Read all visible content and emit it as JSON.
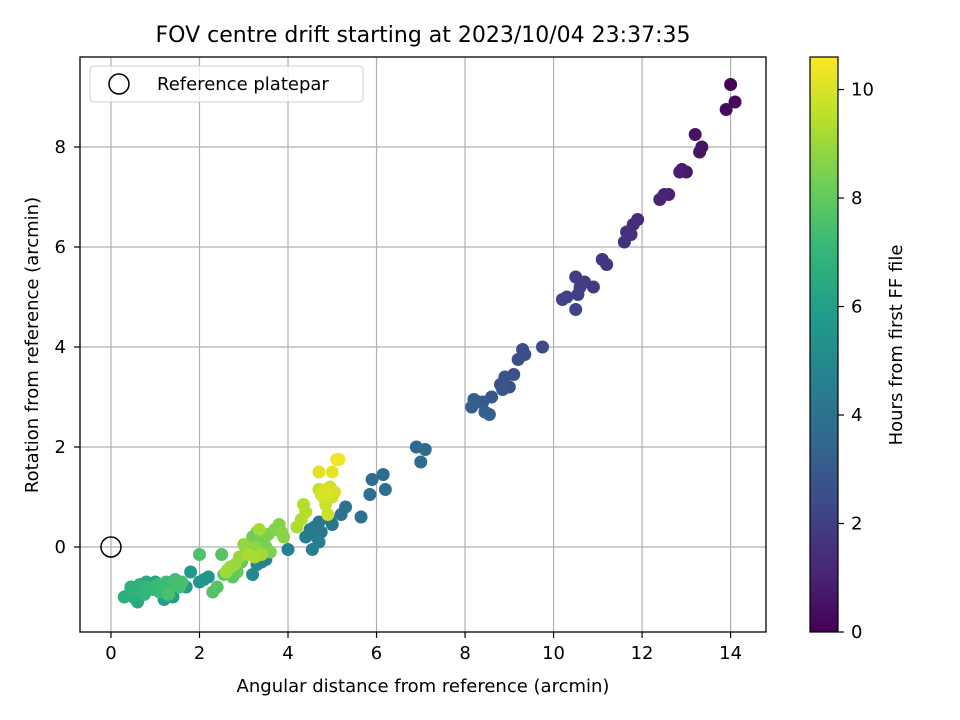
{
  "chart_data": {
    "type": "scatter",
    "title": "FOV centre drift starting at 2023/10/04 23:37:35",
    "xlabel": "Angular distance from reference (arcmin)",
    "ylabel": "Rotation from reference (arcmin)",
    "xlim": [
      -0.7,
      14.8
    ],
    "ylim": [
      -1.7,
      9.8
    ],
    "xticks": [
      0,
      2,
      4,
      6,
      8,
      10,
      12,
      14
    ],
    "yticks": [
      0,
      2,
      4,
      6,
      8
    ],
    "grid": true,
    "legend": {
      "placement": "top-left",
      "entries": [
        "Reference platepar"
      ]
    },
    "reference_point": {
      "x": 0,
      "y": 0,
      "marker": "open-circle",
      "label": "Reference platepar"
    },
    "colorbar": {
      "label": "Hours from first FF file",
      "min": 0,
      "max": 10.6,
      "ticks": [
        0,
        2,
        4,
        6,
        8,
        10
      ],
      "colormap": "viridis"
    },
    "colormap_stops": [
      "#440154",
      "#482878",
      "#3e4989",
      "#31688e",
      "#26828e",
      "#1f9e89",
      "#35b779",
      "#6ece58",
      "#b5de2b",
      "#fde725"
    ],
    "points": [
      [
        14.0,
        9.25,
        0.1
      ],
      [
        14.1,
        8.9,
        0.2
      ],
      [
        13.9,
        8.75,
        0.3
      ],
      [
        13.2,
        8.25,
        0.5
      ],
      [
        13.3,
        7.9,
        0.6
      ],
      [
        13.35,
        8.0,
        0.6
      ],
      [
        12.9,
        7.55,
        0.8
      ],
      [
        13.0,
        7.5,
        0.8
      ],
      [
        12.85,
        7.5,
        0.9
      ],
      [
        12.6,
        7.05,
        1.0
      ],
      [
        12.5,
        7.05,
        1.05
      ],
      [
        12.4,
        6.95,
        1.1
      ],
      [
        11.9,
        6.55,
        1.3
      ],
      [
        11.8,
        6.45,
        1.35
      ],
      [
        11.65,
        6.3,
        1.4
      ],
      [
        11.75,
        6.25,
        1.45
      ],
      [
        11.6,
        6.1,
        1.5
      ],
      [
        11.1,
        5.75,
        1.7
      ],
      [
        11.2,
        5.65,
        1.75
      ],
      [
        10.9,
        5.2,
        1.85
      ],
      [
        10.7,
        5.3,
        1.9
      ],
      [
        10.5,
        5.4,
        1.95
      ],
      [
        10.6,
        5.2,
        2.0
      ],
      [
        10.55,
        5.05,
        2.05
      ],
      [
        10.3,
        5.0,
        2.1
      ],
      [
        10.2,
        4.95,
        2.15
      ],
      [
        10.5,
        4.75,
        2.2
      ],
      [
        9.75,
        4.0,
        2.4
      ],
      [
        9.3,
        3.95,
        2.45
      ],
      [
        9.35,
        3.85,
        2.5
      ],
      [
        9.2,
        3.75,
        2.55
      ],
      [
        9.1,
        3.45,
        2.6
      ],
      [
        8.9,
        3.4,
        2.65
      ],
      [
        9.0,
        3.2,
        2.7
      ],
      [
        8.8,
        3.25,
        2.75
      ],
      [
        8.85,
        3.15,
        2.8
      ],
      [
        8.6,
        3.0,
        2.9
      ],
      [
        8.4,
        2.9,
        3.0
      ],
      [
        8.3,
        2.9,
        3.05
      ],
      [
        8.2,
        2.95,
        3.1
      ],
      [
        8.15,
        2.8,
        3.15
      ],
      [
        8.45,
        2.7,
        3.2
      ],
      [
        8.55,
        2.65,
        3.25
      ],
      [
        6.9,
        2.0,
        3.6
      ],
      [
        7.1,
        1.95,
        3.65
      ],
      [
        7.0,
        1.7,
        3.7
      ],
      [
        6.15,
        1.45,
        3.75
      ],
      [
        5.9,
        1.35,
        3.8
      ],
      [
        6.2,
        1.15,
        3.85
      ],
      [
        5.85,
        1.05,
        3.9
      ],
      [
        5.65,
        0.6,
        3.95
      ],
      [
        5.3,
        0.8,
        4.0
      ],
      [
        5.2,
        0.65,
        4.05
      ],
      [
        4.95,
        0.55,
        4.1
      ],
      [
        5.0,
        0.45,
        4.15
      ],
      [
        4.7,
        0.5,
        4.2
      ],
      [
        4.6,
        0.4,
        4.25
      ],
      [
        4.75,
        0.3,
        4.3
      ],
      [
        4.5,
        0.35,
        4.35
      ],
      [
        4.4,
        0.2,
        4.4
      ],
      [
        4.65,
        0.2,
        4.45
      ],
      [
        4.7,
        0.1,
        4.5
      ],
      [
        4.55,
        -0.05,
        4.55
      ],
      [
        4.0,
        -0.05,
        4.6
      ],
      [
        3.5,
        -0.25,
        4.8
      ],
      [
        3.4,
        -0.3,
        4.85
      ],
      [
        3.3,
        -0.35,
        4.9
      ],
      [
        3.2,
        -0.55,
        4.95
      ],
      [
        2.2,
        -0.6,
        5.5
      ],
      [
        2.1,
        -0.65,
        5.55
      ],
      [
        2.0,
        -0.7,
        5.6
      ],
      [
        1.8,
        -0.5,
        5.7
      ],
      [
        1.7,
        -0.8,
        5.8
      ],
      [
        1.4,
        -1.0,
        5.9
      ],
      [
        1.2,
        -1.05,
        6.0
      ],
      [
        1.0,
        -0.7,
        6.1
      ],
      [
        0.9,
        -0.75,
        6.2
      ],
      [
        0.8,
        -0.7,
        6.3
      ],
      [
        0.6,
        -1.1,
        6.4
      ],
      [
        0.5,
        -1.0,
        6.5
      ],
      [
        0.4,
        -0.95,
        6.6
      ],
      [
        0.3,
        -1.0,
        6.7
      ],
      [
        0.45,
        -0.8,
        6.75
      ],
      [
        0.55,
        -0.9,
        6.8
      ],
      [
        0.65,
        -0.75,
        6.85
      ],
      [
        0.7,
        -0.85,
        6.9
      ],
      [
        0.75,
        -0.95,
        6.95
      ],
      [
        0.85,
        -0.8,
        7.0
      ],
      [
        0.95,
        -0.85,
        7.05
      ],
      [
        1.05,
        -0.75,
        7.1
      ],
      [
        1.1,
        -0.9,
        7.15
      ],
      [
        1.15,
        -0.8,
        7.2
      ],
      [
        1.25,
        -0.7,
        7.25
      ],
      [
        1.35,
        -0.75,
        7.3
      ],
      [
        1.45,
        -0.65,
        7.35
      ],
      [
        1.55,
        -0.8,
        7.4
      ],
      [
        1.6,
        -0.7,
        7.45
      ],
      [
        1.3,
        -0.95,
        7.5
      ],
      [
        2.0,
        -0.15,
        7.6
      ],
      [
        2.3,
        -0.9,
        7.7
      ],
      [
        2.4,
        -0.8,
        7.75
      ],
      [
        2.5,
        -0.15,
        7.8
      ],
      [
        2.55,
        -0.55,
        7.85
      ],
      [
        2.65,
        -0.45,
        7.9
      ],
      [
        2.75,
        -0.6,
        7.95
      ],
      [
        2.85,
        -0.5,
        8.0
      ],
      [
        2.95,
        -0.3,
        8.05
      ],
      [
        3.05,
        -0.1,
        8.1
      ],
      [
        3.1,
        0.0,
        8.15
      ],
      [
        3.2,
        0.2,
        8.2
      ],
      [
        3.3,
        0.3,
        8.25
      ],
      [
        3.35,
        0.2,
        8.3
      ],
      [
        3.45,
        0.1,
        8.35
      ],
      [
        3.5,
        0.0,
        8.4
      ],
      [
        3.55,
        0.25,
        8.45
      ],
      [
        3.6,
        -0.1,
        8.5
      ],
      [
        3.7,
        0.35,
        8.55
      ],
      [
        3.8,
        0.45,
        8.6
      ],
      [
        3.85,
        0.3,
        8.65
      ],
      [
        3.9,
        0.2,
        8.7
      ],
      [
        3.25,
        0.0,
        8.75
      ],
      [
        3.15,
        -0.05,
        8.8
      ],
      [
        3.0,
        0.05,
        8.85
      ],
      [
        2.9,
        -0.2,
        8.9
      ],
      [
        2.8,
        -0.35,
        8.95
      ],
      [
        2.7,
        -0.4,
        9.0
      ],
      [
        2.6,
        -0.5,
        9.05
      ],
      [
        3.4,
        -0.15,
        9.1
      ],
      [
        3.35,
        0.35,
        9.15
      ],
      [
        3.25,
        -0.2,
        9.2
      ],
      [
        3.1,
        -0.15,
        9.25
      ],
      [
        4.2,
        0.4,
        9.3
      ],
      [
        4.3,
        0.55,
        9.35
      ],
      [
        4.35,
        0.85,
        9.4
      ],
      [
        4.4,
        0.7,
        9.45
      ],
      [
        4.7,
        1.15,
        9.6
      ],
      [
        4.8,
        1.0,
        9.7
      ],
      [
        4.85,
        0.85,
        9.75
      ],
      [
        4.9,
        0.65,
        9.8
      ],
      [
        4.95,
        1.2,
        9.85
      ],
      [
        5.0,
        1.0,
        9.9
      ],
      [
        5.05,
        1.1,
        9.95
      ],
      [
        4.75,
        1.05,
        10.0
      ],
      [
        4.85,
        1.15,
        10.05
      ],
      [
        4.7,
        1.5,
        10.1
      ],
      [
        5.0,
        1.5,
        10.2
      ],
      [
        5.1,
        1.75,
        10.3
      ],
      [
        5.15,
        1.75,
        10.4
      ]
    ]
  }
}
